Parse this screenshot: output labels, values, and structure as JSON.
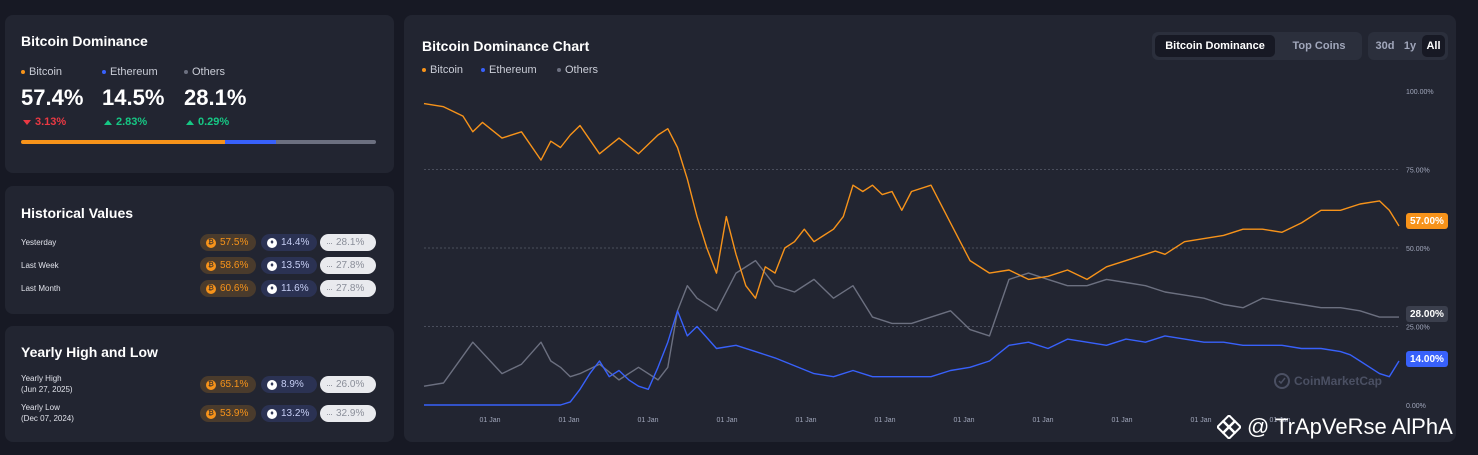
{
  "dominance": {
    "title": "Bitcoin Dominance",
    "items": [
      {
        "name": "Bitcoin",
        "value": "57.4%",
        "change": "3.13%",
        "dir": "down",
        "color": "#f7931a"
      },
      {
        "name": "Ethereum",
        "value": "14.5%",
        "change": "2.83%",
        "dir": "up",
        "color": "#3861fb"
      },
      {
        "name": "Others",
        "value": "28.1%",
        "change": "0.29%",
        "dir": "up",
        "color": "#6c7080"
      }
    ],
    "bar": [
      57.4,
      14.5,
      28.1
    ]
  },
  "historical": {
    "title": "Historical Values",
    "rows": [
      {
        "label": "Yesterday",
        "btc": "57.5%",
        "eth": "14.4%",
        "others": "28.1%"
      },
      {
        "label": "Last Week",
        "btc": "58.6%",
        "eth": "13.5%",
        "others": "27.8%"
      },
      {
        "label": "Last Month",
        "btc": "60.6%",
        "eth": "11.6%",
        "others": "27.8%"
      }
    ]
  },
  "yearly": {
    "title": "Yearly High and Low",
    "rows": [
      {
        "label": "Yearly High",
        "date": "(Jun 27, 2025)",
        "btc": "65.1%",
        "eth": "8.9%",
        "others": "26.0%"
      },
      {
        "label": "Yearly Low",
        "date": "(Dec 07, 2024)",
        "btc": "53.9%",
        "eth": "13.2%",
        "others": "32.9%"
      }
    ]
  },
  "chart_panel": {
    "title": "Bitcoin Dominance Chart",
    "legend": [
      "Bitcoin",
      "Ethereum",
      "Others"
    ],
    "tabs": [
      "Bitcoin Dominance",
      "Top Coins"
    ],
    "active_tab": "Bitcoin Dominance",
    "ranges": [
      "30d",
      "1y",
      "All"
    ],
    "active_range": "All",
    "end_labels": {
      "btc": "57.00%",
      "others": "28.00%",
      "eth": "14.00%"
    },
    "brand": "CoinMarketCap"
  },
  "chart_data": {
    "type": "line",
    "title": "Bitcoin Dominance Chart",
    "y_ticks": [
      "100.00%",
      "75.00%",
      "50.00%",
      "25.00%",
      "0.00%"
    ],
    "ylim": [
      0,
      100
    ],
    "x_ticks": [
      "01 Jan",
      "01 Jan",
      "01 Jan",
      "01 Jan",
      "01 Jan",
      "01 Jan",
      "01 Jan",
      "01 Jan",
      "01 Jan",
      "01 Jan",
      "01 Jan"
    ],
    "grid": true,
    "legend_position": "top-left",
    "series": [
      {
        "name": "Bitcoin",
        "color": "#f7931a",
        "x": [
          0,
          2,
          4,
          5,
          6,
          8,
          10,
          12,
          13,
          14,
          15,
          16,
          18,
          20,
          22,
          24,
          25,
          26,
          27,
          28,
          29,
          30,
          31,
          32,
          33,
          34,
          35,
          36,
          37,
          38,
          39,
          40,
          41,
          42,
          43,
          44,
          45,
          46,
          47,
          48,
          49,
          50,
          52,
          54,
          56,
          58,
          60,
          62,
          64,
          66,
          68,
          70,
          72,
          74,
          75,
          76,
          78,
          80,
          82,
          84,
          86,
          88,
          90,
          92,
          94,
          96,
          98,
          99,
          100
        ],
        "values": [
          96,
          95,
          92,
          87,
          90,
          85,
          87,
          78,
          84,
          82,
          86,
          89,
          80,
          85,
          80,
          86,
          88,
          82,
          72,
          60,
          50,
          42,
          60,
          48,
          38,
          34,
          44,
          42,
          50,
          52,
          56,
          52,
          54,
          56,
          60,
          70,
          68,
          70,
          67,
          68,
          62,
          68,
          70,
          58,
          46,
          42,
          43,
          40,
          41,
          43,
          40,
          44,
          46,
          48,
          49,
          48,
          52,
          53,
          54,
          56,
          56,
          55,
          58,
          62,
          62,
          64,
          65,
          62,
          57
        ]
      },
      {
        "name": "Ethereum",
        "color": "#3861fb",
        "x": [
          0,
          5,
          10,
          14,
          15,
          16,
          17,
          18,
          19,
          20,
          21,
          22,
          23,
          24,
          25,
          26,
          27,
          28,
          30,
          32,
          34,
          36,
          40,
          42,
          44,
          46,
          48,
          50,
          52,
          54,
          56,
          58,
          60,
          62,
          64,
          66,
          68,
          70,
          72,
          74,
          76,
          78,
          80,
          82,
          84,
          86,
          88,
          90,
          92,
          94,
          95,
          96,
          97,
          98,
          99,
          100
        ],
        "values": [
          0,
          0,
          0,
          0,
          1,
          5,
          10,
          14,
          9,
          11,
          8,
          6,
          5,
          12,
          20,
          30,
          22,
          25,
          18,
          19,
          17,
          15,
          10,
          9,
          11,
          9,
          9,
          9,
          9,
          11,
          12,
          14,
          19,
          20,
          18,
          21,
          20,
          19,
          21,
          20,
          22,
          21,
          20,
          20,
          19,
          19,
          19,
          18,
          18,
          17,
          16,
          14,
          12,
          10,
          9,
          14
        ]
      },
      {
        "name": "Others",
        "color": "#6c7080",
        "x": [
          0,
          2,
          5,
          8,
          10,
          12,
          13,
          14,
          15,
          16,
          18,
          20,
          22,
          24,
          25,
          26,
          27,
          28,
          30,
          32,
          34,
          36,
          38,
          40,
          42,
          44,
          46,
          48,
          50,
          52,
          54,
          56,
          58,
          60,
          62,
          64,
          66,
          68,
          70,
          72,
          74,
          76,
          78,
          80,
          82,
          84,
          86,
          88,
          90,
          92,
          94,
          96,
          98,
          100
        ],
        "values": [
          6,
          7,
          20,
          10,
          13,
          20,
          14,
          12,
          9,
          10,
          13,
          8,
          12,
          8,
          12,
          30,
          38,
          34,
          30,
          42,
          46,
          38,
          36,
          40,
          34,
          38,
          28,
          26,
          26,
          28,
          30,
          24,
          22,
          40,
          42,
          40,
          38,
          38,
          40,
          39,
          38,
          36,
          35,
          34,
          32,
          31,
          34,
          33,
          32,
          31,
          31,
          30,
          28,
          28
        ]
      }
    ]
  }
}
